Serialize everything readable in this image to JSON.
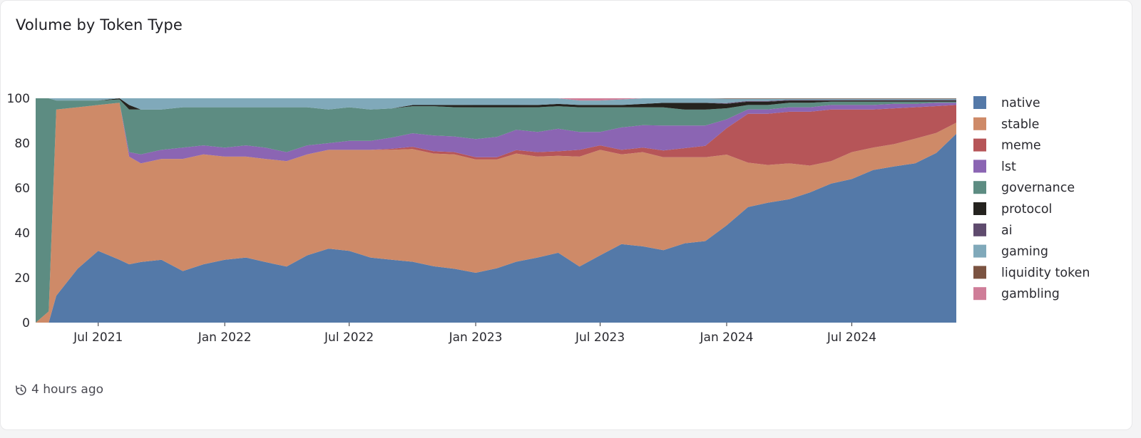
{
  "card": {
    "title": "Volume by Token Type",
    "updated": "4 hours ago",
    "updated_icon": "history-icon"
  },
  "chart_data": {
    "type": "area",
    "stacked": true,
    "percent": true,
    "title": "Volume by Token Type",
    "xlabel": "",
    "ylabel": "",
    "ylim": [
      0,
      100
    ],
    "yticks": [
      0,
      20,
      40,
      60,
      80,
      100
    ],
    "xlim": [
      "2021-04-01",
      "2024-11-30"
    ],
    "xticks": [
      "2021-07-01",
      "2022-01-01",
      "2022-07-01",
      "2023-01-01",
      "2023-07-01",
      "2024-01-01",
      "2024-07-01"
    ],
    "xtick_labels": [
      "Jul 2021",
      "Jan 2022",
      "Jul 2022",
      "Jan 2023",
      "Jul 2023",
      "Jan 2024",
      "Jul 2024"
    ],
    "grid": false,
    "legend_position": "right",
    "series_order": [
      "native",
      "stable",
      "meme",
      "lst",
      "governance",
      "protocol",
      "ai",
      "gaming",
      "liquidity token",
      "gambling"
    ],
    "colors": {
      "native": "#5479a8",
      "stable": "#ce8a68",
      "meme": "#b65558",
      "lst": "#8b65b3",
      "governance": "#5d8c82",
      "protocol": "#25231f",
      "ai": "#5f4b6e",
      "gaming": "#80a9ba",
      "liquidity token": "#7b5341",
      "gambling": "#cf7d98"
    },
    "x": [
      "2021-04-01",
      "2021-04-20",
      "2021-05-01",
      "2021-06-01",
      "2021-07-01",
      "2021-08-01",
      "2021-08-15",
      "2021-09-01",
      "2021-10-01",
      "2021-11-01",
      "2021-12-01",
      "2022-01-01",
      "2022-02-01",
      "2022-03-01",
      "2022-04-01",
      "2022-05-01",
      "2022-06-01",
      "2022-07-01",
      "2022-08-01",
      "2022-09-01",
      "2022-10-01",
      "2022-11-01",
      "2022-12-01",
      "2023-01-01",
      "2023-02-01",
      "2023-03-01",
      "2023-04-01",
      "2023-05-01",
      "2023-06-01",
      "2023-07-01",
      "2023-08-01",
      "2023-09-01",
      "2023-10-01",
      "2023-11-01",
      "2023-12-01",
      "2024-01-01",
      "2024-02-01",
      "2024-03-01",
      "2024-04-01",
      "2024-05-01",
      "2024-06-01",
      "2024-07-01",
      "2024-08-01",
      "2024-09-01",
      "2024-10-01",
      "2024-11-01",
      "2024-11-30"
    ],
    "series": [
      {
        "name": "native",
        "values": [
          0,
          0,
          12,
          24,
          32,
          28,
          26,
          27,
          28,
          23,
          26,
          28,
          29,
          27,
          25,
          30,
          33,
          32,
          29,
          28,
          27,
          25,
          24,
          22,
          24,
          27,
          29,
          31,
          25,
          30,
          35,
          34,
          32,
          35,
          36,
          44,
          52,
          54,
          55,
          58,
          62,
          64,
          68,
          70,
          71,
          76,
          85
        ]
      },
      {
        "name": "stable",
        "values": [
          0,
          5,
          83,
          72,
          65,
          70,
          48,
          44,
          45,
          50,
          49,
          46,
          45,
          46,
          47,
          45,
          44,
          45,
          48,
          49,
          50,
          50,
          51,
          50,
          48,
          48,
          45,
          43,
          49,
          47,
          40,
          42,
          41,
          38,
          37,
          32,
          20,
          17,
          16,
          12,
          10,
          12,
          10,
          10,
          11,
          9,
          5
        ]
      },
      {
        "name": "meme",
        "values": [
          0,
          0,
          0,
          0,
          0,
          0,
          0,
          0,
          0,
          0,
          0,
          0,
          0,
          0,
          0,
          0,
          0,
          0,
          0,
          0.5,
          1,
          1,
          1,
          1,
          1,
          1.5,
          2,
          2,
          3,
          2,
          2,
          2,
          3,
          4,
          5,
          12,
          22,
          23,
          23,
          24,
          23,
          19,
          17,
          16,
          14,
          12,
          8
        ]
      },
      {
        "name": "lst",
        "values": [
          0,
          0,
          0,
          0,
          0,
          0,
          2,
          4,
          4,
          5,
          4,
          4,
          5,
          5,
          4,
          4,
          3,
          4,
          4,
          5,
          6,
          7,
          7,
          8,
          9,
          9,
          9,
          10,
          8,
          6,
          10,
          10,
          11,
          10,
          9,
          4,
          2,
          2,
          2,
          2,
          2,
          2,
          2,
          2,
          1.5,
          1.5,
          1
        ]
      },
      {
        "name": "governance",
        "values": [
          100,
          95,
          4,
          3,
          2,
          1.5,
          19,
          20,
          18,
          18,
          17,
          18,
          17,
          18,
          20,
          17,
          15,
          15,
          14,
          13,
          12,
          13,
          13,
          14,
          13,
          10,
          11,
          10,
          11,
          11,
          9,
          8,
          8,
          7,
          7,
          5,
          2,
          2,
          2,
          2,
          1.5,
          1.5,
          1.5,
          1,
          1,
          0.5,
          0.5
        ]
      },
      {
        "name": "protocol",
        "values": [
          0,
          0,
          0,
          0,
          0,
          0.5,
          2,
          0,
          0,
          0,
          0,
          0,
          0,
          0,
          0,
          0,
          0,
          0,
          0,
          0,
          0.5,
          0.5,
          1,
          1,
          1,
          1,
          1,
          1,
          1,
          1,
          1,
          1.5,
          2,
          3,
          3,
          2,
          1.5,
          1.5,
          1,
          1,
          0.5,
          0.5,
          0.5,
          0.5,
          0.5,
          0.5,
          0.5
        ]
      },
      {
        "name": "ai",
        "values": [
          0,
          0,
          0,
          0,
          0,
          0,
          0,
          0,
          0,
          0,
          0,
          0,
          0,
          0,
          0,
          0,
          0,
          0,
          0,
          0,
          0,
          0,
          0,
          0,
          0,
          0,
          0,
          0,
          0,
          0,
          0,
          0,
          0,
          0,
          0,
          0.3,
          0.3,
          0.3,
          0.3,
          0.3,
          0.3,
          0.3,
          0.3,
          0.3,
          0.3,
          0.3,
          0.3
        ]
      },
      {
        "name": "gaming",
        "values": [
          0,
          0,
          1,
          1,
          1,
          0,
          3,
          5,
          5,
          4,
          4,
          4,
          4,
          4,
          4,
          4,
          5,
          4,
          5,
          4.5,
          3,
          3,
          3,
          3,
          3,
          3,
          3,
          2.5,
          2,
          2,
          2.5,
          2.5,
          2,
          2,
          2,
          2,
          1,
          1,
          0.5,
          0.5,
          0.5,
          0.5,
          0.5,
          0.5,
          0.5,
          0.5,
          0.5
        ]
      },
      {
        "name": "liquidity token",
        "values": [
          0,
          0,
          0,
          0,
          0,
          0,
          0,
          0,
          0,
          0,
          0,
          0,
          0,
          0,
          0,
          0,
          0,
          0,
          0,
          0,
          0,
          0,
          0,
          0,
          0,
          0,
          0,
          0,
          0,
          0,
          0,
          0,
          0,
          0,
          0,
          0.2,
          0.2,
          0.2,
          0.2,
          0.2,
          0.2,
          0.2,
          0.2,
          0.2,
          0.2,
          0.2,
          0.2
        ]
      },
      {
        "name": "gambling",
        "values": [
          0,
          0,
          0,
          0,
          0,
          0,
          0,
          0,
          0,
          0,
          0,
          0,
          0,
          0,
          0,
          0,
          0,
          0,
          0,
          0,
          0,
          0,
          0,
          0,
          0,
          0,
          0,
          0,
          1,
          1,
          0.5,
          0,
          0,
          0,
          0,
          0,
          0,
          0,
          0,
          0,
          0,
          0,
          0,
          0,
          0,
          0,
          0
        ]
      }
    ]
  }
}
